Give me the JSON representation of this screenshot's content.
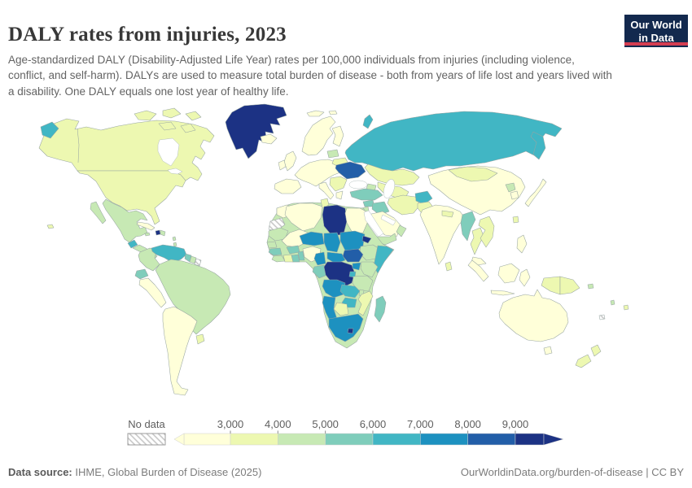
{
  "header": {
    "title": "DALY rates from injuries, 2023",
    "subtitle": "Age-standardized DALY (Disability-Adjusted Life Year) rates per 100,000 individuals from injuries (including violence, conflict, and self-harm). DALYs are used to measure total burden of disease - both from years of life lost and years lived with a disability. One DALY equals one lost year of healthy life."
  },
  "logo": {
    "line1": "Our World",
    "line2": "in Data",
    "bg_color": "#13294e",
    "stripe_color": "#d43d51"
  },
  "footer": {
    "source_label": "Data source:",
    "source_text": " IHME, Global Burden of Disease (2025)",
    "right_text": "OurWorldinData.org/burden-of-disease | CC BY"
  },
  "chart_data": {
    "type": "choropleth",
    "title": "DALY rates from injuries, 2023",
    "unit": "DALYs per 100,000 individuals",
    "legend_position": "bottom",
    "no_data_label": "No data",
    "legend_ticks": [
      "3,000",
      "4,000",
      "5,000",
      "6,000",
      "7,000",
      "8,000",
      "9,000"
    ],
    "bin_edges": [
      3000,
      4000,
      5000,
      6000,
      7000,
      8000,
      9000
    ],
    "bin_colors": [
      "#ffffd9",
      "#edf8b1",
      "#c7e9b4",
      "#7fcdbb",
      "#41b6c4",
      "#1d91c0",
      "#225ea8",
      "#1c3284"
    ],
    "bin_labels": [
      "<3,000",
      "3,000-4,000",
      "4,000-5,000",
      "5,000-6,000",
      "6,000-7,000",
      "7,000-8,000",
      "8,000-9,000",
      ">9,000"
    ],
    "regions": [
      {
        "id": "canada",
        "label": "Canada",
        "bin": 1
      },
      {
        "id": "usa",
        "label": "United States",
        "bin": 1
      },
      {
        "id": "arctic-islands",
        "label": "Canadian Arctic Islands",
        "bin": 1
      },
      {
        "id": "greenland",
        "label": "Greenland",
        "bin": 7
      },
      {
        "id": "hawaii",
        "label": "Hawaii (US)",
        "bin": 1
      },
      {
        "id": "mexico",
        "label": "Mexico",
        "bin": 2
      },
      {
        "id": "guatemala",
        "label": "Guatemala",
        "bin": 4
      },
      {
        "id": "central-america",
        "label": "Central America",
        "bin": 2
      },
      {
        "id": "cuba",
        "label": "Cuba",
        "bin": 0
      },
      {
        "id": "haiti",
        "label": "Haiti",
        "bin": 7
      },
      {
        "id": "dominican-republic",
        "label": "Dominican Republic",
        "bin": 2
      },
      {
        "id": "jamaica",
        "label": "Jamaica",
        "bin": 2
      },
      {
        "id": "lesser-antilles",
        "label": "Lesser Antilles",
        "bin": 2
      },
      {
        "id": "colombia",
        "label": "Colombia",
        "bin": 2
      },
      {
        "id": "venezuela",
        "label": "Venezuela",
        "bin": 4
      },
      {
        "id": "guyana",
        "label": "Guyana",
        "bin": 3
      },
      {
        "id": "suriname",
        "label": "Suriname",
        "bin": 2
      },
      {
        "id": "french-guiana",
        "label": "French Guiana",
        "bin": null
      },
      {
        "id": "ecuador",
        "label": "Ecuador",
        "bin": 3
      },
      {
        "id": "peru",
        "label": "Peru",
        "bin": 0
      },
      {
        "id": "brazil",
        "label": "Brazil",
        "bin": 2
      },
      {
        "id": "chile-argentina",
        "label": "Chile & Argentina",
        "bin": 0
      },
      {
        "id": "uruguay",
        "label": "Uruguay",
        "bin": 1
      },
      {
        "id": "iceland",
        "label": "Iceland",
        "bin": 0
      },
      {
        "id": "svalbard",
        "label": "Svalbard",
        "bin": 0
      },
      {
        "id": "united-kingdom",
        "label": "United Kingdom",
        "bin": 0
      },
      {
        "id": "ireland",
        "label": "Ireland",
        "bin": 0
      },
      {
        "id": "scandinavia",
        "label": "Norway & Sweden",
        "bin": 0
      },
      {
        "id": "finland",
        "label": "Finland",
        "bin": 0
      },
      {
        "id": "europe-mainland",
        "label": "Western & Central Europe",
        "bin": 0
      },
      {
        "id": "spain-portugal",
        "label": "Spain & Portugal",
        "bin": 0
      },
      {
        "id": "italy",
        "label": "Italy",
        "bin": 0
      },
      {
        "id": "balkans",
        "label": "Balkans & Romania",
        "bin": 1
      },
      {
        "id": "greece",
        "label": "Greece",
        "bin": 0
      },
      {
        "id": "baltics",
        "label": "Baltic states",
        "bin": 2
      },
      {
        "id": "belarus",
        "label": "Belarus",
        "bin": 1
      },
      {
        "id": "ukraine",
        "label": "Ukraine",
        "bin": 6
      },
      {
        "id": "russia",
        "label": "Russia",
        "bin": 4
      },
      {
        "id": "novaya-zemlya",
        "label": "Novaya Zemlya (Russia)",
        "bin": 4
      },
      {
        "id": "kazakhstan",
        "label": "Kazakhstan",
        "bin": 1
      },
      {
        "id": "central-asia",
        "label": "Central Asia",
        "bin": 1
      },
      {
        "id": "caucasus",
        "label": "Caucasus",
        "bin": 2
      },
      {
        "id": "turkey",
        "label": "Turkey",
        "bin": 3
      },
      {
        "id": "syria",
        "label": "Syria",
        "bin": 3
      },
      {
        "id": "iraq",
        "label": "Iraq",
        "bin": 3
      },
      {
        "id": "iran",
        "label": "Iran",
        "bin": 1
      },
      {
        "id": "israel-jordan",
        "label": "Israel & Jordan",
        "bin": 2
      },
      {
        "id": "saudi-arabia",
        "label": "Saudi Arabia",
        "bin": 0
      },
      {
        "id": "yemen",
        "label": "Yemen",
        "bin": 2
      },
      {
        "id": "oman",
        "label": "Oman",
        "bin": 2
      },
      {
        "id": "afghanistan",
        "label": "Afghanistan",
        "bin": 4
      },
      {
        "id": "pakistan",
        "label": "Pakistan",
        "bin": 1
      },
      {
        "id": "india",
        "label": "India",
        "bin": 0
      },
      {
        "id": "nepal",
        "label": "Nepal",
        "bin": 1
      },
      {
        "id": "sri-lanka",
        "label": "Sri Lanka",
        "bin": 1
      },
      {
        "id": "china",
        "label": "China",
        "bin": 0
      },
      {
        "id": "mongolia",
        "label": "Mongolia",
        "bin": 1
      },
      {
        "id": "north-korea",
        "label": "North Korea",
        "bin": 2
      },
      {
        "id": "south-korea",
        "label": "South Korea",
        "bin": 0
      },
      {
        "id": "japan",
        "label": "Japan",
        "bin": 0
      },
      {
        "id": "taiwan",
        "label": "Taiwan",
        "bin": 1
      },
      {
        "id": "myanmar",
        "label": "Myanmar",
        "bin": 3
      },
      {
        "id": "thailand",
        "label": "Thailand",
        "bin": 1
      },
      {
        "id": "indochina",
        "label": "Laos, Vietnam & Cambodia",
        "bin": 1
      },
      {
        "id": "malaysia",
        "label": "Malaysia",
        "bin": 0
      },
      {
        "id": "indonesia",
        "label": "Indonesia",
        "bin": 0
      },
      {
        "id": "indonesia-papua",
        "label": "Indonesia (Papua)",
        "bin": 1
      },
      {
        "id": "papua-new-guinea",
        "label": "Papua New Guinea",
        "bin": 1
      },
      {
        "id": "philippines",
        "label": "Philippines",
        "bin": 0
      },
      {
        "id": "australia",
        "label": "Australia",
        "bin": 0
      },
      {
        "id": "new-zealand",
        "label": "New Zealand",
        "bin": 1
      },
      {
        "id": "fiji",
        "label": "Fiji",
        "bin": 1
      },
      {
        "id": "vanuatu",
        "label": "Vanuatu",
        "bin": 2
      },
      {
        "id": "new-caledonia",
        "label": "New Caledonia",
        "bin": null
      },
      {
        "id": "solomon-islands",
        "label": "Solomon Islands",
        "bin": 2
      },
      {
        "id": "africa-base",
        "label": "Africa (base fill)",
        "bin": 2
      },
      {
        "id": "morocco",
        "label": "Morocco",
        "bin": 0
      },
      {
        "id": "western-sahara",
        "label": "Western Sahara",
        "bin": null
      },
      {
        "id": "algeria",
        "label": "Algeria",
        "bin": 0
      },
      {
        "id": "tunisia",
        "label": "Tunisia",
        "bin": 1
      },
      {
        "id": "libya",
        "label": "Libya",
        "bin": 7
      },
      {
        "id": "egypt",
        "label": "Egypt",
        "bin": 0
      },
      {
        "id": "mauritania",
        "label": "Mauritania",
        "bin": 2
      },
      {
        "id": "mali",
        "label": "Mali",
        "bin": 0
      },
      {
        "id": "senegal",
        "label": "Senegal",
        "bin": 2
      },
      {
        "id": "guinea",
        "label": "Guinea",
        "bin": 3
      },
      {
        "id": "sierra-leone-liberia",
        "label": "Sierra Leone & Liberia",
        "bin": 2
      },
      {
        "id": "ivory-coast",
        "label": "Cote d'Ivoire",
        "bin": 1
      },
      {
        "id": "ghana",
        "label": "Ghana",
        "bin": 3
      },
      {
        "id": "burkina-faso",
        "label": "Burkina Faso",
        "bin": 3
      },
      {
        "id": "benin-togo",
        "label": "Benin & Togo",
        "bin": 3
      },
      {
        "id": "nigeria",
        "label": "Nigeria",
        "bin": 0
      },
      {
        "id": "niger",
        "label": "Niger",
        "bin": 5
      },
      {
        "id": "chad",
        "label": "Chad",
        "bin": 5
      },
      {
        "id": "sudan",
        "label": "Sudan",
        "bin": 5
      },
      {
        "id": "eritrea",
        "label": "Eritrea",
        "bin": 7
      },
      {
        "id": "ethiopia",
        "label": "Ethiopia",
        "bin": 2
      },
      {
        "id": "somalia",
        "label": "Somalia",
        "bin": 4
      },
      {
        "id": "south-sudan",
        "label": "South Sudan",
        "bin": 6
      },
      {
        "id": "central-african-republic",
        "label": "Central African Republic",
        "bin": 5
      },
      {
        "id": "cameroon",
        "label": "Cameroon",
        "bin": 5
      },
      {
        "id": "gabon-congo",
        "label": "Gabon & Congo",
        "bin": 3
      },
      {
        "id": "dr-congo",
        "label": "Democratic Republic of Congo",
        "bin": 7
      },
      {
        "id": "uganda",
        "label": "Uganda",
        "bin": 5
      },
      {
        "id": "kenya",
        "label": "Kenya",
        "bin": 2
      },
      {
        "id": "rwanda-burundi",
        "label": "Rwanda & Burundi",
        "bin": 4
      },
      {
        "id": "tanzania",
        "label": "Tanzania",
        "bin": 2
      },
      {
        "id": "angola",
        "label": "Angola",
        "bin": 5
      },
      {
        "id": "zambia",
        "label": "Zambia",
        "bin": 4
      },
      {
        "id": "malawi",
        "label": "Malawi",
        "bin": 2
      },
      {
        "id": "mozambique",
        "label": "Mozambique",
        "bin": 1
      },
      {
        "id": "zimbabwe",
        "label": "Zimbabwe",
        "bin": 4
      },
      {
        "id": "botswana",
        "label": "Botswana",
        "bin": 1
      },
      {
        "id": "namibia",
        "label": "Namibia",
        "bin": 5
      },
      {
        "id": "south-africa",
        "label": "South Africa",
        "bin": 5
      },
      {
        "id": "lesotho",
        "label": "Lesotho",
        "bin": 7
      },
      {
        "id": "madagascar",
        "label": "Madagascar",
        "bin": 3
      }
    ]
  }
}
